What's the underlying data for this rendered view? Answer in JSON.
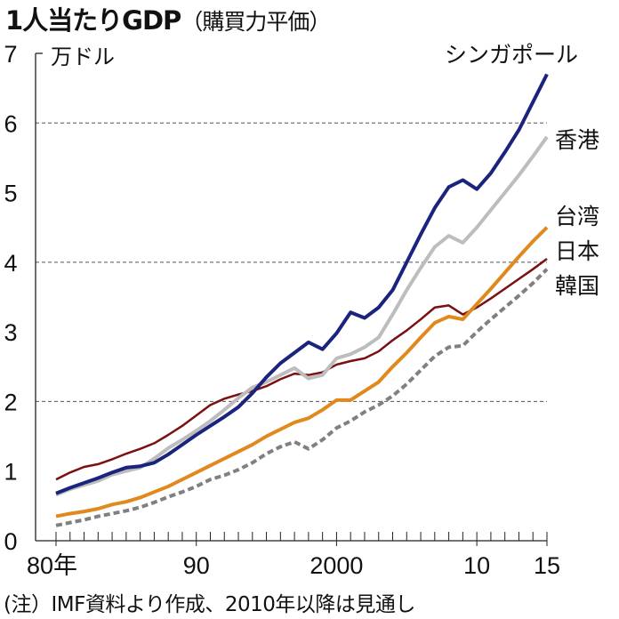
{
  "title": "1人当たりGDP",
  "subtitle": "（購買力平価）",
  "note": "(注）IMF資料より作成、2010年以降は見通し",
  "chart_data": {
    "type": "line",
    "ylabel": "万ドル",
    "ylim": [
      0,
      7
    ],
    "yticks": [
      "0",
      "1",
      "2",
      "3",
      "4",
      "5",
      "6",
      "7"
    ],
    "gridlines_at": [
      2,
      4,
      6
    ],
    "xlim": [
      1980,
      2015
    ],
    "xtick_labels": [
      {
        "year": 1980,
        "label": "80年"
      },
      {
        "year": 1990,
        "label": "90"
      },
      {
        "year": 2000,
        "label": "2000"
      },
      {
        "year": 2010,
        "label": "10"
      },
      {
        "year": 2015,
        "label": "15"
      }
    ],
    "x": [
      1980,
      1981,
      1982,
      1983,
      1984,
      1985,
      1986,
      1987,
      1988,
      1989,
      1990,
      1991,
      1992,
      1993,
      1994,
      1995,
      1996,
      1997,
      1998,
      1999,
      2000,
      2001,
      2002,
      2003,
      2004,
      2005,
      2006,
      2007,
      2008,
      2009,
      2010,
      2011,
      2012,
      2013,
      2014,
      2015
    ],
    "series": [
      {
        "name": "シンガポール",
        "color": "#1a237e",
        "dashed": false,
        "values": [
          0.68,
          0.76,
          0.83,
          0.9,
          0.98,
          1.05,
          1.07,
          1.12,
          1.24,
          1.38,
          1.52,
          1.65,
          1.78,
          1.92,
          2.12,
          2.35,
          2.55,
          2.7,
          2.85,
          2.75,
          2.98,
          3.28,
          3.2,
          3.35,
          3.6,
          4.0,
          4.4,
          4.78,
          5.08,
          5.18,
          5.05,
          5.28,
          5.58,
          5.9,
          6.3,
          6.7
        ]
      },
      {
        "name": "香港",
        "color": "#bdbdbd",
        "dashed": false,
        "values": [
          0.66,
          0.74,
          0.8,
          0.86,
          0.95,
          1.0,
          1.05,
          1.18,
          1.33,
          1.45,
          1.58,
          1.72,
          1.88,
          2.05,
          2.2,
          2.28,
          2.38,
          2.48,
          2.33,
          2.38,
          2.62,
          2.68,
          2.78,
          2.92,
          3.25,
          3.6,
          3.92,
          4.22,
          4.38,
          4.28,
          4.5,
          4.75,
          5.0,
          5.25,
          5.52,
          5.8
        ]
      },
      {
        "name": "台湾",
        "color": "#e08a1e",
        "dashed": false,
        "values": [
          0.35,
          0.39,
          0.42,
          0.46,
          0.52,
          0.56,
          0.62,
          0.7,
          0.78,
          0.88,
          0.98,
          1.08,
          1.18,
          1.28,
          1.38,
          1.5,
          1.6,
          1.7,
          1.76,
          1.88,
          2.02,
          2.02,
          2.15,
          2.28,
          2.5,
          2.7,
          2.92,
          3.13,
          3.22,
          3.18,
          3.4,
          3.62,
          3.85,
          4.08,
          4.3,
          4.5
        ]
      },
      {
        "name": "日本",
        "color": "#7a1010",
        "dashed": false,
        "values": [
          0.88,
          0.98,
          1.06,
          1.1,
          1.17,
          1.25,
          1.32,
          1.4,
          1.52,
          1.65,
          1.8,
          1.95,
          2.04,
          2.1,
          2.15,
          2.22,
          2.32,
          2.4,
          2.38,
          2.42,
          2.53,
          2.58,
          2.62,
          2.72,
          2.88,
          3.02,
          3.18,
          3.35,
          3.38,
          3.25,
          3.35,
          3.48,
          3.62,
          3.76,
          3.9,
          4.05
        ]
      },
      {
        "name": "韓国",
        "color": "#808080",
        "dashed": true,
        "values": [
          0.22,
          0.26,
          0.3,
          0.35,
          0.39,
          0.43,
          0.48,
          0.55,
          0.63,
          0.7,
          0.78,
          0.88,
          0.94,
          1.02,
          1.12,
          1.25,
          1.35,
          1.42,
          1.32,
          1.45,
          1.62,
          1.72,
          1.85,
          1.95,
          2.08,
          2.25,
          2.45,
          2.65,
          2.78,
          2.8,
          3.0,
          3.18,
          3.35,
          3.52,
          3.7,
          3.9
        ]
      }
    ]
  }
}
